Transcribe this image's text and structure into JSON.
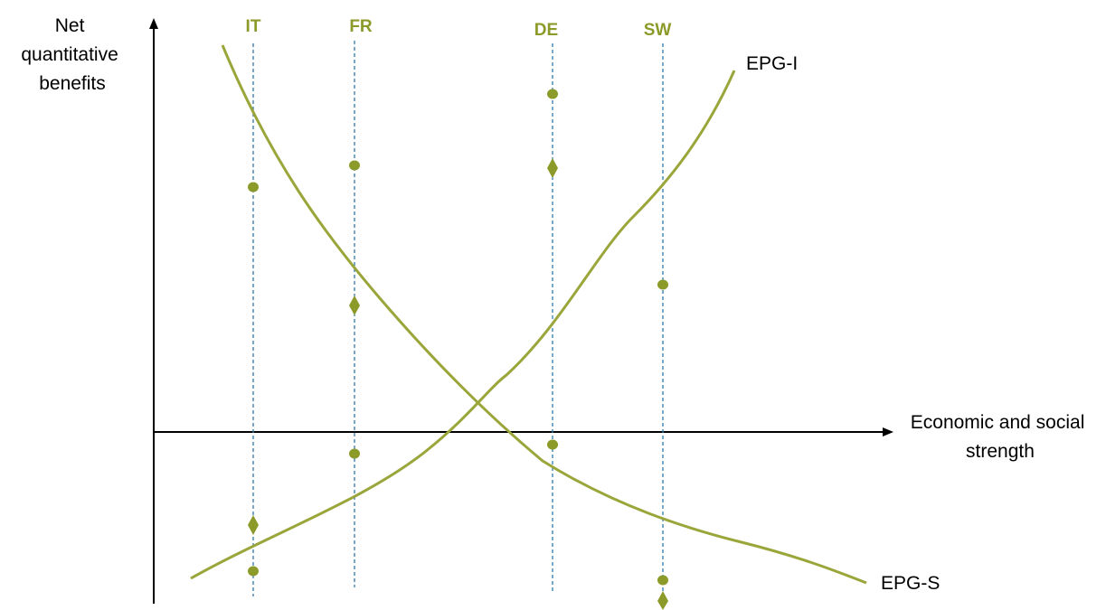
{
  "colors": {
    "curve": "#9aa63a",
    "marker": "#8c9a2a",
    "country_text": "#8c9a2a",
    "guide_line": "#2f79ad",
    "axis": "#000000"
  },
  "y_axis_label": [
    "Net",
    "quantitative",
    "benefits"
  ],
  "x_axis_label": [
    "Economic and social",
    "strength"
  ],
  "countries": [
    "IT",
    "FR",
    "DE",
    "SW"
  ],
  "curves": [
    "EPG-I",
    "EPG-S"
  ],
  "marker_shapes": [
    "circle",
    "diamond"
  ]
}
